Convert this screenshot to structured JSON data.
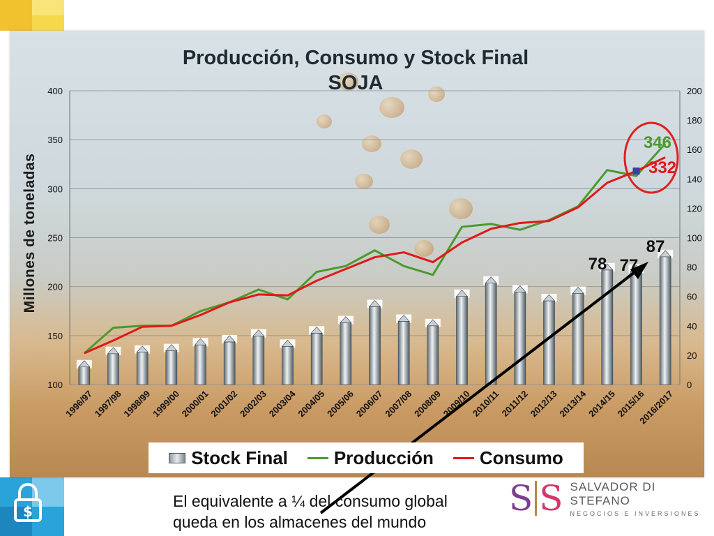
{
  "slide": {
    "footnote_line1": "El equivalente a ¼ del consumo global",
    "footnote_line2": "queda en los almacenes del mundo",
    "brand_name": "SALVADOR DI STEFANO",
    "brand_tagline": "NEGOCIOS E INVERSIONES",
    "brand_mark_left": "S",
    "brand_mark_right": "S",
    "lock_icon": "dollar-lock-icon",
    "colors": {
      "produccion": "#4a9a2e",
      "consumo": "#e01818",
      "stock_bar": "#9aa6ae",
      "circle": "#e02020",
      "arrow": "#000000"
    }
  },
  "chart_data": {
    "type": "bar",
    "title_line1": "Producción, Consumo y Stock Final",
    "title_line2": "SOJA",
    "ylabel": "Millones de toneladas",
    "ylim": [
      100,
      400
    ],
    "y2lim": [
      0,
      200
    ],
    "y_ticks": [
      "100",
      "150",
      "200",
      "250",
      "300",
      "350",
      "400"
    ],
    "y2_ticks": [
      "0",
      "20",
      "40",
      "60",
      "80",
      "100",
      "120",
      "140",
      "160",
      "180",
      "200"
    ],
    "categories": [
      "1996/97",
      "1997/98",
      "1998/99",
      "1999/00",
      "2000/01",
      "2001/02",
      "2002/03",
      "2003/04",
      "2004/05",
      "2005/06",
      "2006/07",
      "2007/08",
      "2008/09",
      "2009/10",
      "2010/11",
      "2011/12",
      "2012/13",
      "2013/14",
      "2014/15",
      "2015/16",
      "2016/2017"
    ],
    "grid": true,
    "legend_position": "bottom",
    "series": [
      {
        "name": "Stock Final",
        "type": "bar",
        "axis": "right",
        "values": [
          12,
          21,
          22,
          23,
          27,
          29,
          33,
          26,
          35,
          42,
          53,
          43,
          40,
          60,
          69,
          63,
          57,
          62,
          78,
          77,
          87
        ]
      },
      {
        "name": "Producción",
        "type": "line",
        "axis": "left",
        "values": [
          132,
          158,
          160,
          160,
          175,
          184,
          197,
          187,
          215,
          221,
          237,
          221,
          212,
          261,
          264,
          258,
          268,
          282,
          319,
          313,
          346
        ]
      },
      {
        "name": "Consumo",
        "type": "line",
        "axis": "left",
        "values": [
          132,
          145,
          159,
          160,
          171,
          184,
          192,
          191,
          206,
          218,
          230,
          235,
          225,
          245,
          259,
          265,
          267,
          281,
          306,
          318,
          332
        ]
      }
    ],
    "annotations": [
      "78",
      "77",
      "87",
      "346",
      "332"
    ]
  }
}
